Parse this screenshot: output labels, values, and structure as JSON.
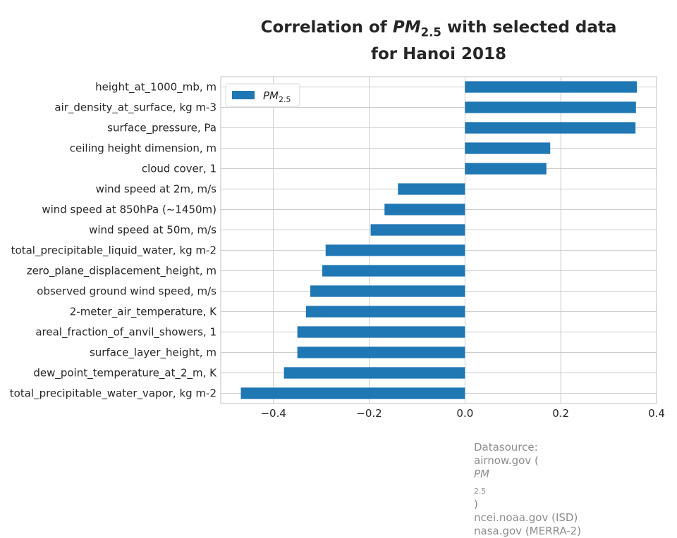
{
  "chart_data": {
    "type": "bar",
    "orientation": "horizontal",
    "title": {
      "line1_prefix": "Correlation of",
      "pollutant": "PM",
      "pollutant_subscript": "2.5",
      "line1_suffix": "with selected data",
      "line2": "for Hanoi 2018"
    },
    "categories": [
      "height_at_1000_mb, m",
      "air_density_at_surface, kg m-3",
      "surface_pressure, Pa",
      "ceiling height dimension, m",
      "cloud cover, 1",
      "wind speed at 2m, m/s",
      "wind speed at 850hPa (~1450m)",
      "wind speed at 50m, m/s",
      "total_precipitable_liquid_water, kg m-2",
      "zero_plane_displacement_height, m",
      "observed ground wind speed, m/s",
      "2-meter_air_temperature, K",
      "areal_fraction_of_anvil_showers, 1",
      "surface_layer_height, m",
      "dew_point_temperature_at_2_m, K",
      "total_precipitable_water_vapor, kg m-2"
    ],
    "series": [
      {
        "name": "PM",
        "name_subscript": "2.5",
        "color": "#1f77b4",
        "values": [
          0.359,
          0.357,
          0.356,
          0.178,
          0.17,
          -0.14,
          -0.168,
          -0.197,
          -0.291,
          -0.298,
          -0.323,
          -0.332,
          -0.35,
          -0.35,
          -0.378,
          -0.468
        ]
      }
    ],
    "xlim": [
      -0.51,
      0.4
    ],
    "xticks": [
      -0.4,
      -0.2,
      0.0,
      0.2,
      0.4
    ],
    "xtick_labels": [
      "−0.4",
      "−0.2",
      "0.0",
      "0.2",
      "0.4"
    ],
    "grid": true,
    "legend_position": "top-left"
  },
  "source": {
    "heading": "Datasource:",
    "line_airnow_prefix": "airnow.gov (",
    "line_airnow_var": "PM",
    "line_airnow_sub": "2.5",
    "line_airnow_suffix": ")",
    "line_ncei": "ncei.noaa.gov (ISD)",
    "line_nasa": "nasa.gov (MERRA-2)"
  },
  "colors": {
    "bar": "#1f77b4",
    "grid": "#cccccc",
    "frame": "#cccccc",
    "text": "#262626",
    "source_text": "#8c8c8c"
  }
}
